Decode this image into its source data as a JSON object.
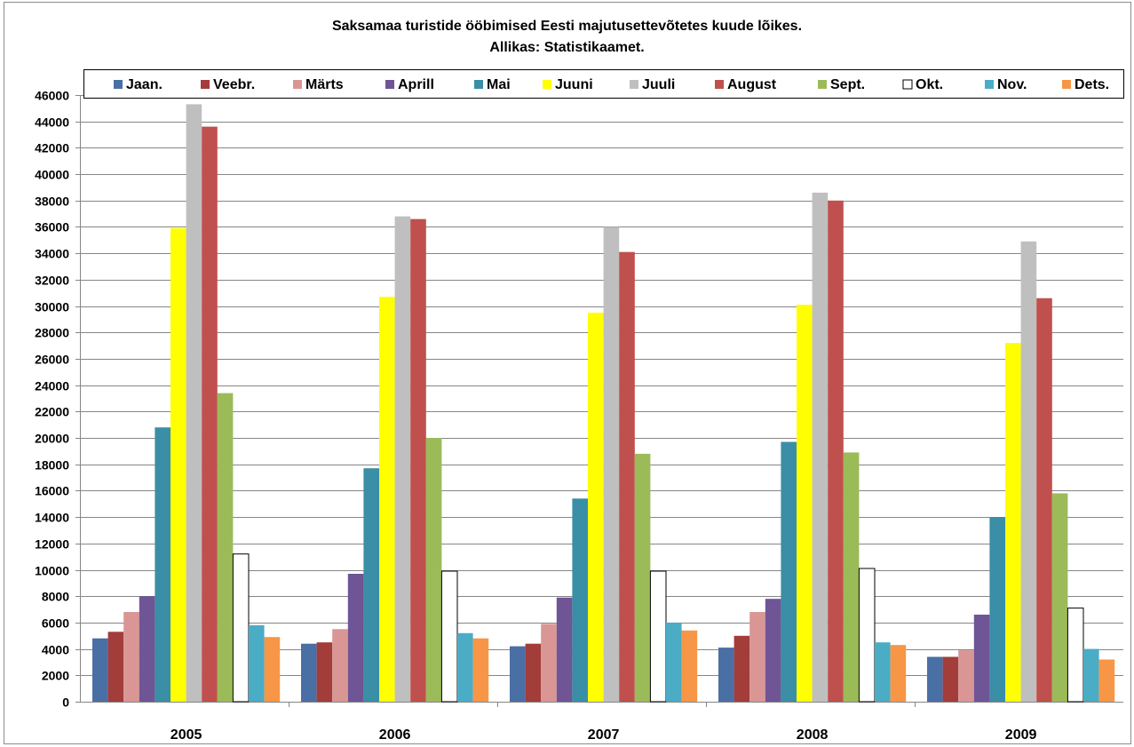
{
  "chart_data": {
    "type": "bar",
    "title": "Saksamaa turistide ööbimised Eesti majutusettevõtetes kuude lõikes.",
    "subtitle": "Allikas: Statistikaamet.",
    "categories": [
      "2005",
      "2006",
      "2007",
      "2008",
      "2009"
    ],
    "ylim": [
      0,
      46000
    ],
    "ytick_step": 2000,
    "grid": true,
    "legend_position": "top",
    "series": [
      {
        "name": "Jaan.",
        "color": "#4a6fa5",
        "values": [
          4800,
          4400,
          4200,
          4100,
          3400
        ]
      },
      {
        "name": "Veebr.",
        "color": "#a33d3a",
        "values": [
          5300,
          4500,
          4400,
          5000,
          3400
        ]
      },
      {
        "name": "Märts",
        "color": "#d99694",
        "values": [
          6800,
          5500,
          5900,
          6800,
          3900
        ]
      },
      {
        "name": "Aprill",
        "color": "#6f5596",
        "values": [
          8000,
          9700,
          7900,
          7800,
          6600
        ]
      },
      {
        "name": "Mai",
        "color": "#3a8ea5",
        "values": [
          20800,
          17700,
          15400,
          19700,
          14000
        ]
      },
      {
        "name": "Juuni",
        "color": "#ffff00",
        "values": [
          35900,
          30700,
          29500,
          30100,
          27200
        ]
      },
      {
        "name": "Juuli",
        "color": "#bfbfbf",
        "values": [
          45300,
          36800,
          36000,
          38600,
          34900
        ]
      },
      {
        "name": "August",
        "color": "#c0504d",
        "values": [
          43600,
          36600,
          34100,
          38000,
          30600
        ]
      },
      {
        "name": "Sept.",
        "color": "#9bbb59",
        "values": [
          23400,
          20000,
          18800,
          18900,
          15800
        ]
      },
      {
        "name": "Okt.",
        "color": "#ffffff",
        "values": [
          11200,
          9900,
          9900,
          10100,
          7100
        ]
      },
      {
        "name": "Nov.",
        "color": "#4bacc6",
        "values": [
          5800,
          5200,
          6000,
          4500,
          4000
        ]
      },
      {
        "name": "Dets.",
        "color": "#f79646",
        "values": [
          4900,
          4800,
          5400,
          4300,
          3200
        ]
      }
    ]
  }
}
